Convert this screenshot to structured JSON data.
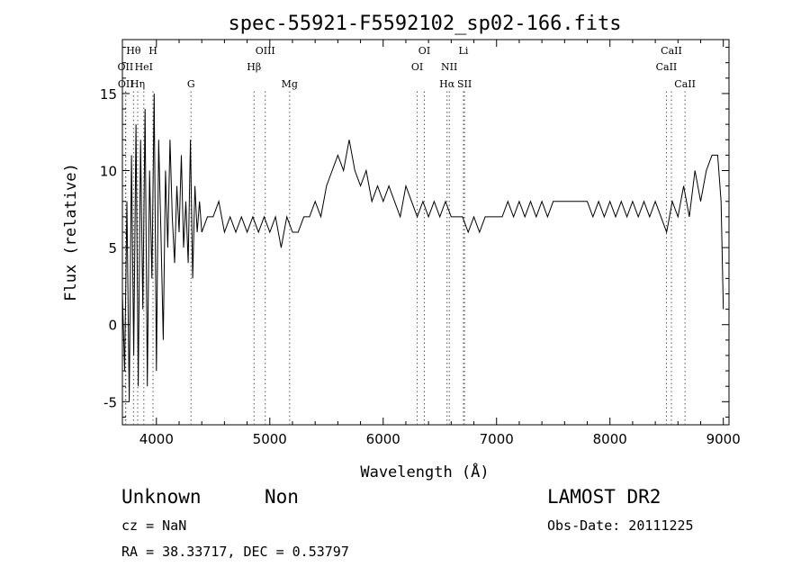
{
  "chart_data": {
    "type": "line",
    "title": "spec-55921-F5592102_sp02-166.fits",
    "xlabel": "Wavelength (Å)",
    "ylabel": "Flux (relative)",
    "xlim": [
      3700,
      9050
    ],
    "ylim": [
      -6.5,
      18.5
    ],
    "xticks": [
      4000,
      5000,
      6000,
      7000,
      8000,
      9000
    ],
    "yticks": [
      -5,
      0,
      5,
      10,
      15
    ],
    "grid": false,
    "legend": "none",
    "lines": [
      {
        "label": "Hθ",
        "wave": 3798,
        "row": 0
      },
      {
        "label": "H",
        "wave": 3970,
        "row": 0
      },
      {
        "label": "OII",
        "wave": 3727,
        "row": 1
      },
      {
        "label": "HeI",
        "wave": 3889,
        "row": 1
      },
      {
        "label": "OII",
        "wave": 3730,
        "row": 2
      },
      {
        "label": "Hη",
        "wave": 3835,
        "row": 2
      },
      {
        "label": "G",
        "wave": 4305,
        "row": 2
      },
      {
        "label": "OIII",
        "wave": 4960,
        "row": 0
      },
      {
        "label": "Hβ",
        "wave": 4861,
        "row": 1
      },
      {
        "label": "Mg",
        "wave": 5175,
        "row": 2
      },
      {
        "label": "OI",
        "wave": 6363,
        "row": 0
      },
      {
        "label": "OI",
        "wave": 6300,
        "row": 1
      },
      {
        "label": "Li",
        "wave": 6708,
        "row": 0
      },
      {
        "label": "NII",
        "wave": 6583,
        "row": 1
      },
      {
        "label": "Hα",
        "wave": 6563,
        "row": 2
      },
      {
        "label": "SII",
        "wave": 6717,
        "row": 2
      },
      {
        "label": "CaII",
        "wave": 8542,
        "row": 0
      },
      {
        "label": "CaII",
        "wave": 8498,
        "row": 1
      },
      {
        "label": "CaII",
        "wave": 8662,
        "row": 2
      }
    ],
    "spectrum": {
      "x": [
        3700,
        3720,
        3740,
        3760,
        3780,
        3800,
        3820,
        3840,
        3860,
        3880,
        3900,
        3920,
        3940,
        3960,
        3980,
        4000,
        4020,
        4040,
        4060,
        4080,
        4100,
        4120,
        4140,
        4160,
        4180,
        4200,
        4220,
        4240,
        4260,
        4280,
        4300,
        4320,
        4340,
        4360,
        4380,
        4400,
        4450,
        4500,
        4550,
        4600,
        4650,
        4700,
        4750,
        4800,
        4850,
        4900,
        4950,
        5000,
        5050,
        5100,
        5150,
        5200,
        5250,
        5300,
        5350,
        5400,
        5450,
        5500,
        5550,
        5600,
        5650,
        5700,
        5750,
        5800,
        5850,
        5900,
        5950,
        6000,
        6050,
        6100,
        6150,
        6200,
        6250,
        6300,
        6350,
        6400,
        6450,
        6500,
        6550,
        6600,
        6650,
        6700,
        6750,
        6800,
        6850,
        6900,
        6950,
        7000,
        7050,
        7100,
        7150,
        7200,
        7250,
        7300,
        7350,
        7400,
        7450,
        7500,
        7550,
        7600,
        7650,
        7700,
        7750,
        7800,
        7850,
        7900,
        7950,
        8000,
        8050,
        8100,
        8150,
        8200,
        8250,
        8300,
        8350,
        8400,
        8450,
        8500,
        8550,
        8600,
        8650,
        8700,
        8750,
        8800,
        8850,
        8900,
        8950,
        8980,
        9000
      ],
      "y": [
        2,
        -3,
        8,
        -5,
        11,
        -2,
        13,
        -4,
        12,
        1,
        14,
        -4,
        10,
        3,
        15,
        -3,
        12,
        6,
        -1,
        10,
        5,
        12,
        7,
        4,
        9,
        6,
        11,
        5,
        8,
        4,
        12,
        3,
        9,
        6,
        8,
        6,
        7,
        7,
        8,
        6,
        7,
        6,
        7,
        6,
        7,
        6,
        7,
        6,
        7,
        5,
        7,
        6,
        6,
        7,
        7,
        8,
        7,
        9,
        10,
        11,
        10,
        12,
        10,
        9,
        10,
        8,
        9,
        8,
        9,
        8,
        7,
        9,
        8,
        7,
        8,
        7,
        8,
        7,
        8,
        7,
        7,
        7,
        6,
        7,
        6,
        7,
        7,
        7,
        7,
        8,
        7,
        8,
        7,
        8,
        7,
        8,
        7,
        8,
        8,
        8,
        8,
        8,
        8,
        8,
        7,
        8,
        7,
        8,
        7,
        8,
        7,
        8,
        7,
        8,
        7,
        8,
        7,
        6,
        8,
        7,
        9,
        7,
        10,
        8,
        10,
        11,
        11,
        8,
        1
      ]
    }
  },
  "footer": {
    "object_class": "Unknown",
    "subclass": "Non",
    "cz": "cz = NaN",
    "coords": "RA =  38.33717, DEC =   0.53797",
    "survey": "LAMOST DR2",
    "obs_date": "Obs-Date: 20111225"
  }
}
